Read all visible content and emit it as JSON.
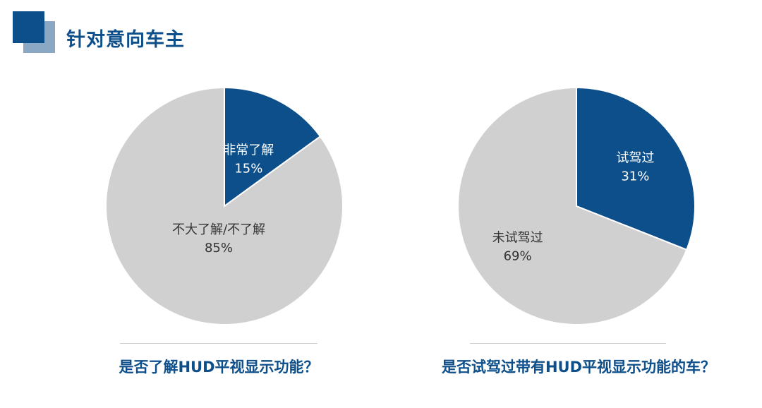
{
  "header": {
    "title": "针对意向车主"
  },
  "colors": {
    "accent_dark": "#0d4f8a",
    "accent_light": "#8aa7c4",
    "slice_grey": "#d1d0d1",
    "divider": "#cfcfcf"
  },
  "chart_data": [
    {
      "type": "pie",
      "title": "是否了解HUD平视显示功能？",
      "slices": [
        {
          "label": "非常了解",
          "value": 15,
          "display": "15%",
          "color": "#0d4f8a",
          "label_color": "#ffffff"
        },
        {
          "label": "不大了解/不了解",
          "value": 85,
          "display": "85%",
          "color": "#d1d0d1",
          "label_color": "#333333"
        }
      ]
    },
    {
      "type": "pie",
      "title": "是否试驾过带有HUD平视显示功能的车？",
      "slices": [
        {
          "label": "试驾过",
          "value": 31,
          "display": "31%",
          "color": "#0d4f8a",
          "label_color": "#ffffff"
        },
        {
          "label": "未试驾过",
          "value": 69,
          "display": "69%",
          "color": "#d1d0d1",
          "label_color": "#333333"
        }
      ]
    }
  ]
}
